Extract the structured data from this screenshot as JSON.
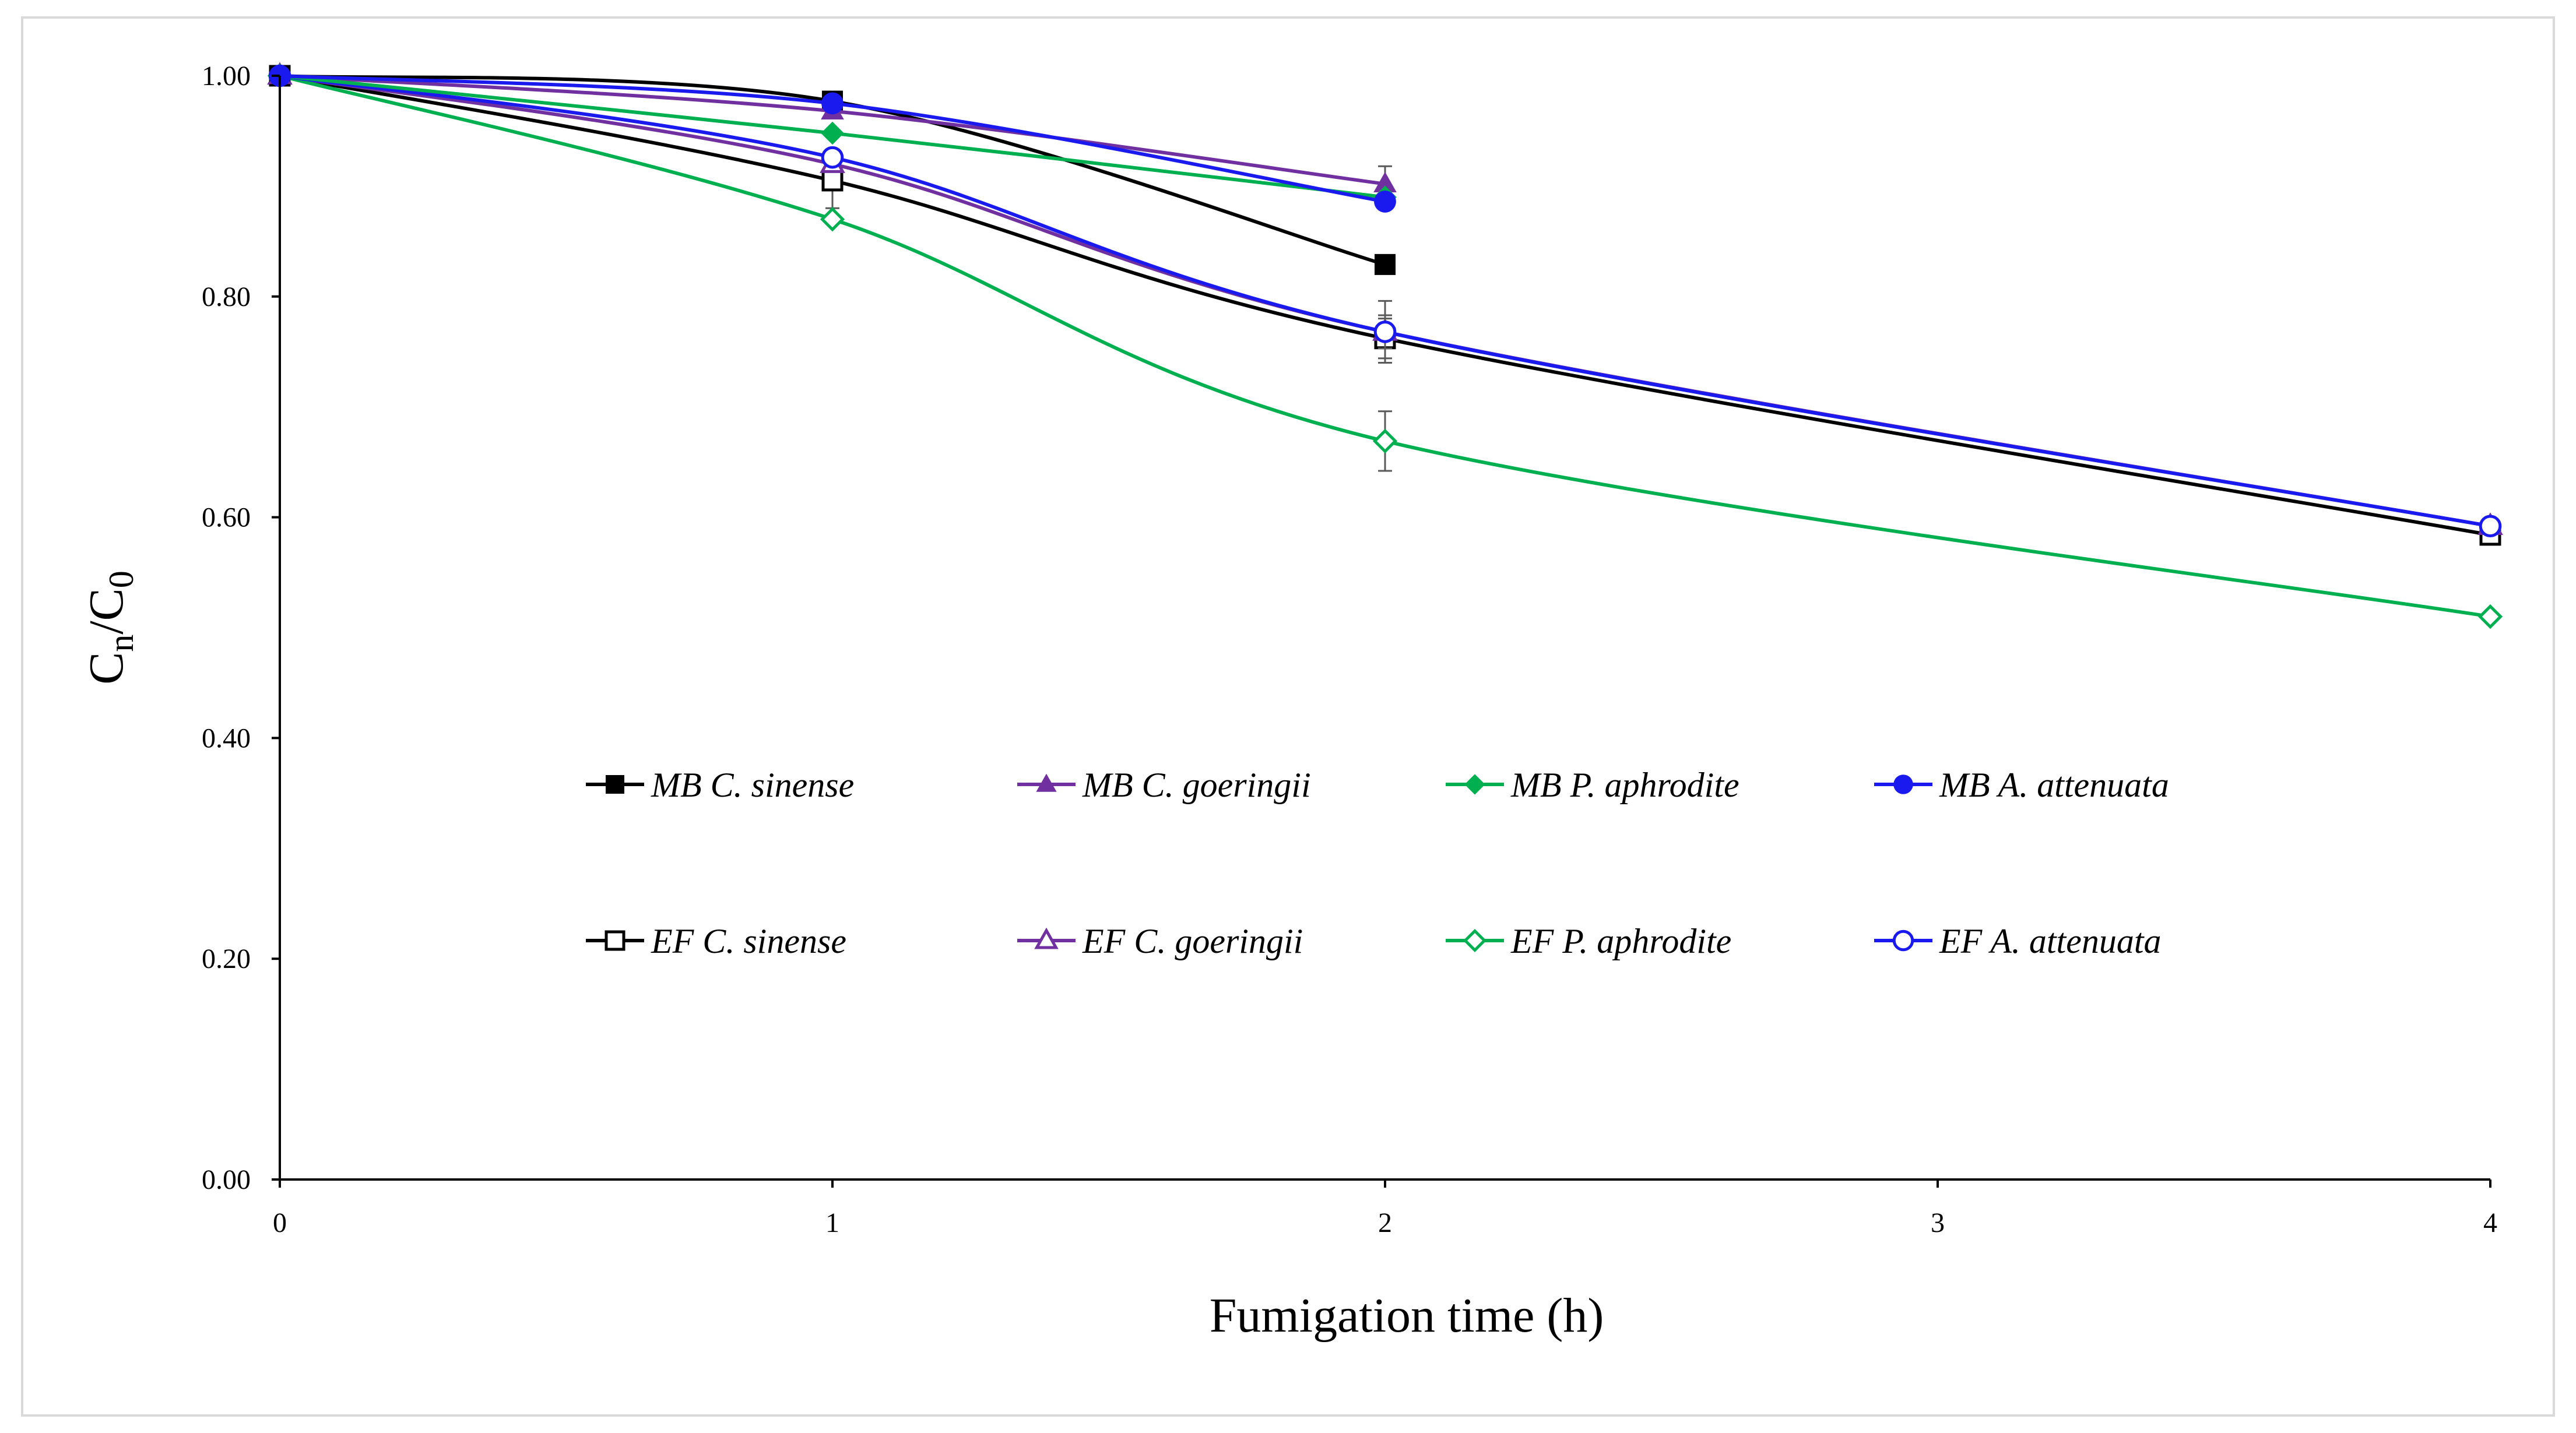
{
  "chart_data": {
    "type": "line",
    "title": "",
    "xlabel": "Fumigation time (h)",
    "ylabel_main": "C",
    "ylabel_sub1": "n",
    "ylabel_slash": "/C",
    "ylabel_sub2": "0",
    "xlim": [
      0,
      4
    ],
    "ylim": [
      0,
      1.0
    ],
    "x_ticks": [
      0,
      1,
      2,
      3,
      4
    ],
    "x_tick_labels": [
      "0",
      "1",
      "2",
      "3",
      "4"
    ],
    "y_ticks": [
      0,
      0.2,
      0.4,
      0.6,
      0.8,
      1.0
    ],
    "y_tick_labels": [
      "0.00",
      "0.20",
      "0.40",
      "0.60",
      "0.80",
      "1.00"
    ],
    "grid": false,
    "legend_position": "center",
    "series": [
      {
        "name": "MB C. sinense",
        "prefix": "MB",
        "species": "C. sinense",
        "color": "#000000",
        "marker": "square",
        "filled": true,
        "x": [
          0,
          1,
          2
        ],
        "y": [
          1.0,
          0.977,
          0.829
        ],
        "err": [
          0,
          0,
          0
        ]
      },
      {
        "name": "MB C. goeringii",
        "prefix": "MB",
        "species": "C. goeringii",
        "color": "#7030a0",
        "marker": "triangle",
        "filled": true,
        "x": [
          0,
          1,
          2
        ],
        "y": [
          1.0,
          0.968,
          0.902
        ],
        "err": [
          0,
          0,
          0.016
        ]
      },
      {
        "name": "MB P. aphrodite",
        "prefix": "MB",
        "species": "P. aphrodite",
        "color": "#00b050",
        "marker": "diamond",
        "filled": true,
        "x": [
          0,
          1,
          2
        ],
        "y": [
          1.0,
          0.948,
          0.89
        ],
        "err": [
          0,
          0,
          0
        ]
      },
      {
        "name": "MB A. attenuata",
        "prefix": "MB",
        "species": "A. attenuata",
        "color": "#1a1aee",
        "marker": "circle",
        "filled": true,
        "x": [
          0,
          1,
          2
        ],
        "y": [
          1.0,
          0.975,
          0.886
        ],
        "err": [
          0,
          0,
          0
        ]
      },
      {
        "name": "EF C. sinense",
        "prefix": "EF",
        "species": "C. sinense",
        "color": "#000000",
        "marker": "square",
        "filled": false,
        "x": [
          0,
          1,
          2,
          4
        ],
        "y": [
          1.0,
          0.905,
          0.762,
          0.584
        ],
        "err": [
          0,
          0.025,
          0.018,
          0
        ]
      },
      {
        "name": "EF C. goeringii",
        "prefix": "EF",
        "species": "C. goeringii",
        "color": "#7030a0",
        "marker": "triangle",
        "filled": false,
        "x": [
          0,
          1,
          2,
          4
        ],
        "y": [
          1.0,
          0.92,
          0.768,
          0.592
        ],
        "err": [
          0,
          0,
          0.015,
          0
        ]
      },
      {
        "name": "EF P. aphrodite",
        "prefix": "EF",
        "species": "P. aphrodite",
        "color": "#00b050",
        "marker": "diamond",
        "filled": false,
        "x": [
          0,
          1,
          2,
          4
        ],
        "y": [
          1.0,
          0.87,
          0.669,
          0.51
        ],
        "err": [
          0,
          0,
          0.027,
          0
        ]
      },
      {
        "name": "EF A. attenuata",
        "prefix": "EF",
        "species": "A. attenuata",
        "color": "#1a1aee",
        "marker": "circle",
        "filled": false,
        "x": [
          0,
          1,
          2,
          4
        ],
        "y": [
          1.0,
          0.926,
          0.768,
          0.592
        ],
        "err": [
          0,
          0,
          0.028,
          0
        ]
      }
    ]
  }
}
